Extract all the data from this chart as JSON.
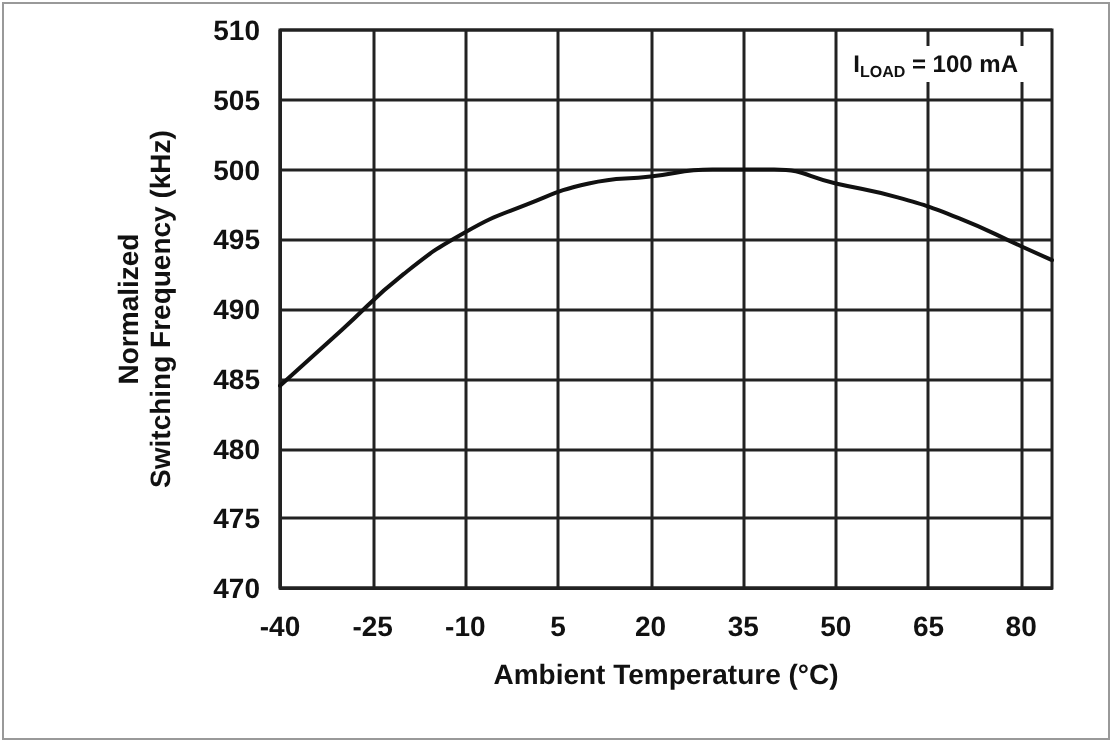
{
  "chart_data": {
    "type": "line",
    "xlabel": "Ambient Temperature (°C)",
    "ylabel": "Normalized\nSwitching Frequency (kHz)",
    "x": [
      -40,
      -30,
      -20,
      -10,
      0,
      10,
      20,
      30,
      40,
      50,
      60,
      70,
      80,
      85
    ],
    "series": [
      {
        "color": "#111111",
        "values": [
          484.5,
          488.5,
          492.5,
          495.5,
          497.5,
          499,
          499.5,
          500,
          500,
          499,
          498,
          496.5,
          494.5,
          493.5
        ]
      }
    ],
    "xlim": [
      -40,
      85
    ],
    "xticks": [
      -40,
      -25,
      -10,
      5,
      20,
      35,
      50,
      65,
      80
    ],
    "ylim": [
      470,
      510
    ],
    "yticks": [
      470,
      475,
      480,
      485,
      490,
      495,
      500,
      505,
      510
    ],
    "annotations": [
      "I$_{LOAD}$ = 100 mA"
    ],
    "grid": true,
    "marker": "none",
    "line_style": "solid"
  }
}
